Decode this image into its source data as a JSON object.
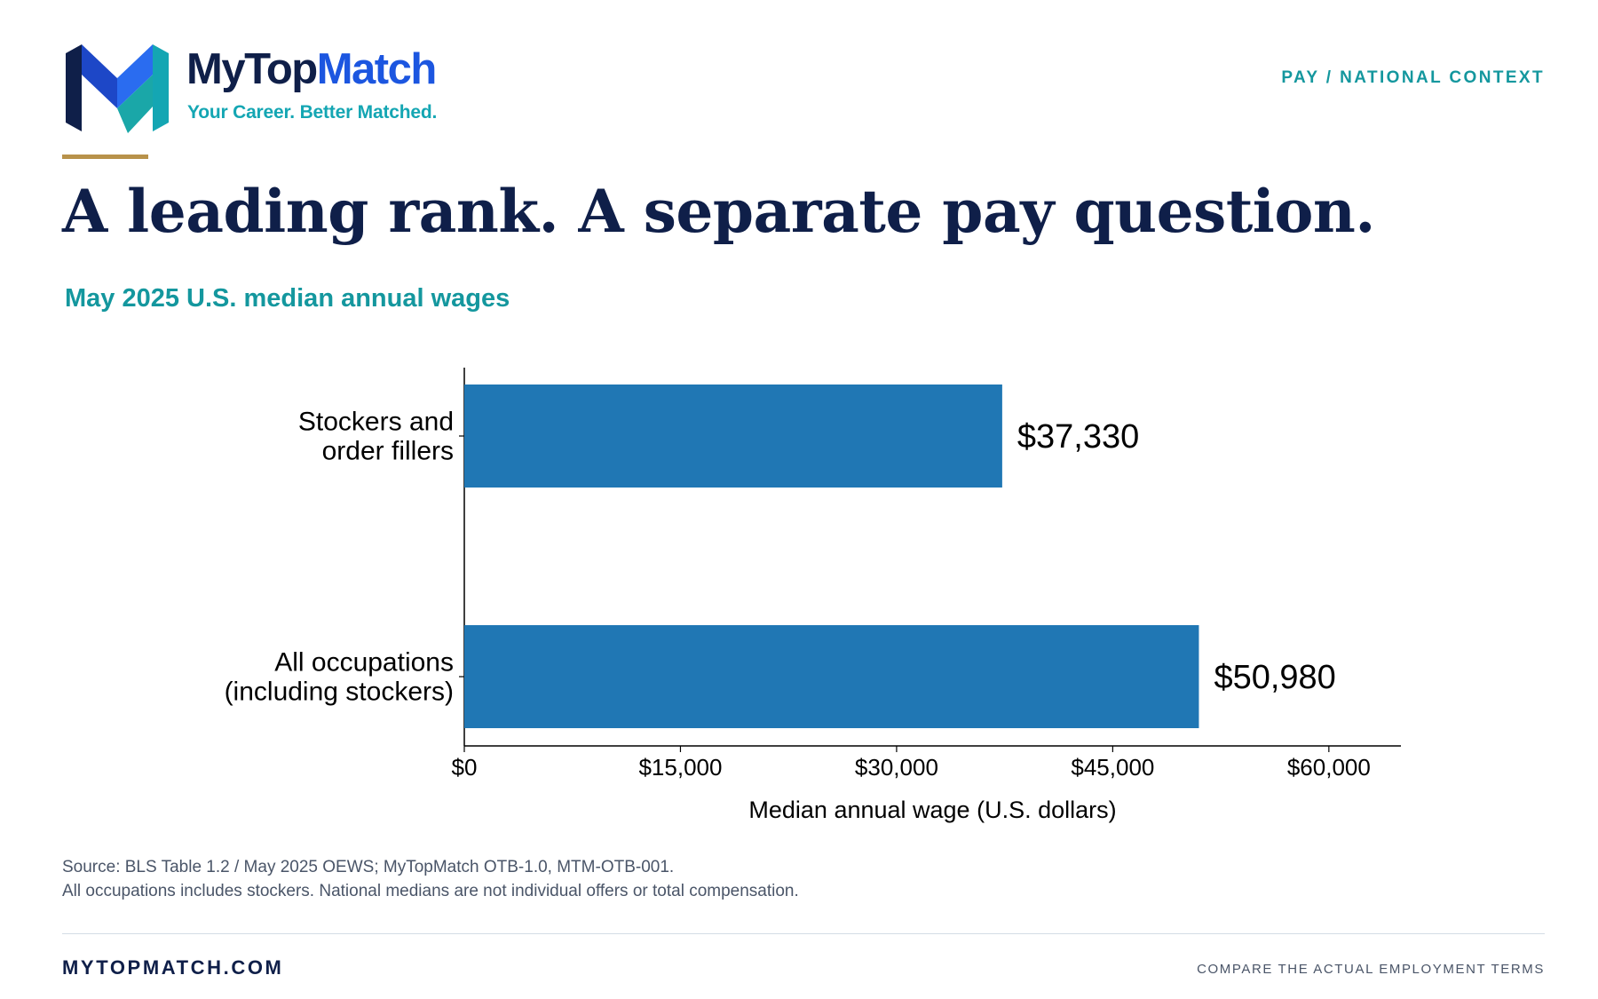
{
  "brand": {
    "name_part1": "MyTop",
    "name_part2": "Match",
    "tagline": "Your Career. Better Matched.",
    "colors": {
      "navy": "#0f1f49",
      "blue": "#1c56e0",
      "teal": "#14a6b3",
      "gold": "#b8924a"
    }
  },
  "header": {
    "section_tag": "PAY / NATIONAL CONTEXT"
  },
  "headline": "A leading rank. A separate pay question.",
  "subtitle": "May 2025 U.S. median annual wages",
  "chart_data": {
    "type": "bar",
    "orientation": "horizontal",
    "categories": [
      [
        "Stockers and",
        "order fillers"
      ],
      [
        "All occupations",
        "(including stockers)"
      ]
    ],
    "values": [
      37330,
      50980
    ],
    "value_labels": [
      "$37,330",
      "$50,980"
    ],
    "xlabel": "Median annual wage (U.S. dollars)",
    "xlim": [
      0,
      65000
    ],
    "xticks": [
      0,
      15000,
      30000,
      45000,
      60000
    ],
    "xtick_labels": [
      "$0",
      "$15,000",
      "$30,000",
      "$45,000",
      "$60,000"
    ],
    "bar_color": "#2077b4",
    "grid": false
  },
  "footnotes": [
    "Source: BLS Table 1.2 / May 2025 OEWS; MyTopMatch OTB-1.0, MTM-OTB-001.",
    "All occupations includes stockers. National medians are not individual offers or total compensation."
  ],
  "footer": {
    "site": "MYTOPMATCH.COM",
    "cta": "COMPARE THE ACTUAL EMPLOYMENT TERMS"
  }
}
